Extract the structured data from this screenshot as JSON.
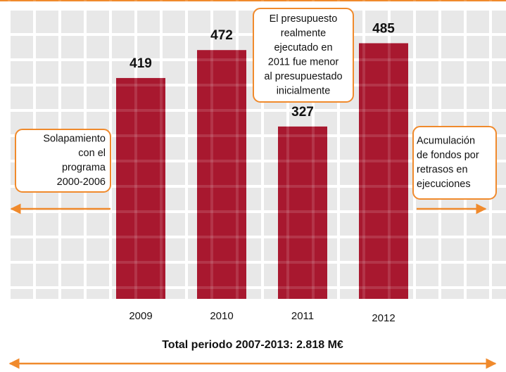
{
  "chart_data": {
    "type": "bar",
    "categories": [
      "2009",
      "2010",
      "2011",
      "2012"
    ],
    "values": [
      419,
      472,
      327,
      485
    ],
    "color": "#a8182f",
    "ylim": [
      0,
      567
    ],
    "total": "Total periodo 2007-2013: 2.818 M€",
    "annotations": [
      [
        "Solapamiento",
        "con el",
        "programa",
        "2000-2006"
      ],
      [
        "El presupuesto",
        "realmente",
        "ejecutado en",
        "2011 fue menor",
        "al presupuestado",
        "inicialmente"
      ],
      [
        "Acumulación",
        "de fondos por",
        "retrasos en",
        "ejecuciones"
      ]
    ]
  }
}
